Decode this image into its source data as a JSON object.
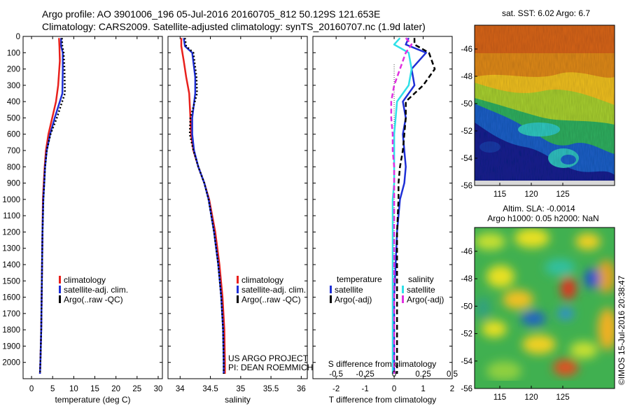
{
  "header": {
    "line1": "Argo profile: AO 3901006_196 05-Jul-2016 20160705_812 50.129S 121.653E",
    "line2": "Climatology: CARS2009. Satellite-adjusted climatology: synTS_20160707.nc (1.9d later)"
  },
  "colors": {
    "climatology": "#e8201c",
    "satellite": "#1e2fd6",
    "argo": "#000000",
    "sat_salinity": "#30e0e8",
    "argo_adj_salinity": "#e030e0"
  },
  "chart_data": [
    {
      "type": "line",
      "xlabel": "temperature (deg C)",
      "ylabel": "",
      "xlim": [
        -2,
        31
      ],
      "ylim": [
        2100,
        0
      ],
      "xticks": [
        "0",
        "5",
        "10",
        "15",
        "20",
        "25",
        "30"
      ],
      "yticks": [
        "0",
        "100",
        "200",
        "300",
        "400",
        "500",
        "600",
        "700",
        "800",
        "900",
        "1000",
        "1100",
        "1200",
        "1300",
        "1400",
        "1500",
        "1600",
        "1700",
        "1800",
        "1900",
        "2000"
      ],
      "legend": [
        "climatology",
        "satellite-adj. clim.",
        "Argo(..raw -QC)"
      ],
      "legend_position": "center-left",
      "series": [
        {
          "name": "climatology",
          "x": [
            6.5,
            6.6,
            6.7,
            6.3,
            5.8,
            4.9,
            4.0,
            3.4,
            3.1,
            2.9,
            2.7,
            2.6,
            2.5,
            2.4,
            2.3,
            2.2,
            2.1,
            2.0
          ],
          "y": [
            10,
            60,
            150,
            300,
            400,
            500,
            600,
            700,
            800,
            900,
            1000,
            1200,
            1400,
            1600,
            1800,
            1900,
            2000,
            2070
          ]
        },
        {
          "name": "satellite-adj. clim.",
          "x": [
            7.0,
            7.0,
            7.4,
            7.4,
            7.3,
            5.5,
            4.4,
            3.6,
            3.2,
            3.0,
            2.8,
            2.6,
            2.5,
            2.4,
            2.3,
            2.2,
            2.1,
            2.0
          ],
          "y": [
            10,
            60,
            100,
            200,
            350,
            500,
            600,
            700,
            800,
            900,
            1000,
            1200,
            1400,
            1600,
            1800,
            1900,
            2000,
            2070
          ]
        },
        {
          "name": "Argo(..raw -QC)",
          "x": [
            7.2,
            7.3,
            7.6,
            7.8,
            7.9,
            6.0,
            4.5,
            3.6,
            3.2,
            3.0,
            2.8,
            2.6,
            2.5,
            2.4,
            2.3,
            2.2,
            2.1,
            2.0
          ],
          "y": [
            10,
            60,
            100,
            200,
            350,
            500,
            600,
            700,
            800,
            900,
            1000,
            1200,
            1400,
            1600,
            1800,
            1900,
            2000,
            2070
          ]
        }
      ]
    },
    {
      "type": "line",
      "xlabel": "salinity",
      "ylabel": "",
      "xlim": [
        33.8,
        36.1
      ],
      "ylim": [
        2100,
        0
      ],
      "xticks": [
        "34",
        "34.5",
        "35",
        "35.5",
        "36"
      ],
      "legend": [
        "climatology",
        "satellite-adj. clim.",
        "Argo(..raw -QC)"
      ],
      "legend_position": "center-right",
      "annotation": [
        "US ARGO PROJECT",
        "PI: DEAN ROEMMICH"
      ],
      "series": [
        {
          "name": "climatology",
          "x": [
            34.02,
            34.02,
            34.06,
            34.1,
            34.15,
            34.17,
            34.18,
            34.22,
            34.3,
            34.4,
            34.48,
            34.58,
            34.65,
            34.7,
            34.73,
            34.74,
            34.74
          ],
          "y": [
            10,
            60,
            150,
            250,
            350,
            500,
            600,
            700,
            800,
            900,
            1000,
            1200,
            1400,
            1600,
            1800,
            2000,
            2070
          ]
        },
        {
          "name": "satellite-adj. clim.",
          "x": [
            34.06,
            34.08,
            34.2,
            34.25,
            34.25,
            34.2,
            34.2,
            34.23,
            34.3,
            34.4,
            34.47,
            34.56,
            34.63,
            34.68,
            34.71,
            34.72,
            34.72
          ],
          "y": [
            10,
            60,
            100,
            250,
            350,
            500,
            600,
            700,
            800,
            900,
            1000,
            1200,
            1400,
            1600,
            1800,
            2000,
            2070
          ]
        },
        {
          "name": "Argo(..raw -QC)",
          "x": [
            34.08,
            34.1,
            34.22,
            34.27,
            34.28,
            34.17,
            34.16,
            34.22,
            34.3,
            34.4,
            34.47,
            34.56,
            34.63,
            34.68,
            34.71,
            34.72,
            34.72
          ],
          "y": [
            10,
            60,
            100,
            250,
            350,
            500,
            600,
            700,
            800,
            900,
            1000,
            1200,
            1400,
            1600,
            1800,
            2000,
            2070
          ]
        }
      ]
    },
    {
      "type": "line",
      "xlabel": "T difference from climatology",
      "xlabel2": "S difference from climatology",
      "xlim": [
        -2.8,
        2.0
      ],
      "ylim": [
        2100,
        0
      ],
      "xticks": [
        "-2",
        "-1",
        "0",
        "1",
        "2"
      ],
      "xticks_s": [
        "-0.5",
        "-0.25",
        "0",
        "0.25",
        "0.5"
      ],
      "legend_titles": [
        "temperature",
        "salinity"
      ],
      "legend": [
        "satellite",
        "Argo(-adj)",
        "satellite",
        "Argo(-adj)"
      ],
      "legend_position": "center",
      "series": [
        {
          "name": "satellite",
          "group": "temperature",
          "x": [
            0.5,
            0.4,
            1.1,
            0.6,
            0.7,
            0.3,
            0.4,
            0.3,
            0.35,
            0.4,
            0.35,
            0.2,
            0.1,
            0.05,
            0.0,
            0.0,
            0.0,
            0.0
          ],
          "y": [
            10,
            50,
            100,
            200,
            300,
            400,
            500,
            600,
            700,
            800,
            900,
            1000,
            1200,
            1400,
            1600,
            1800,
            2000,
            2070
          ]
        },
        {
          "name": "Argo(-adj)",
          "group": "temperature",
          "x": [
            0.7,
            0.7,
            1.2,
            1.4,
            1.0,
            0.4,
            0.4,
            0.35,
            0.3,
            0.2,
            0.15,
            0.15,
            0.1,
            0.1,
            0.1,
            0.1,
            0.1,
            0.1
          ],
          "y": [
            10,
            50,
            100,
            200,
            300,
            400,
            500,
            600,
            700,
            800,
            900,
            1000,
            1200,
            1400,
            1600,
            1800,
            2000,
            2070
          ]
        },
        {
          "name": "satellite",
          "group": "salinity",
          "x": [
            0.2,
            0.0,
            0.5,
            0.6,
            0.5,
            0.1,
            0.05,
            0.0,
            0.0,
            0.0,
            0.0,
            -0.05,
            -0.05,
            -0.05,
            -0.05,
            -0.05,
            -0.05,
            -0.05
          ],
          "y": [
            10,
            50,
            100,
            200,
            300,
            400,
            500,
            600,
            700,
            800,
            900,
            1000,
            1200,
            1400,
            1600,
            1800,
            2000,
            2070
          ]
        },
        {
          "name": "Argo(-adj)",
          "group": "salinity",
          "x": [
            0.4,
            0.6,
            0.4,
            0.2,
            0.0,
            -0.1,
            -0.1,
            -0.05,
            -0.05,
            0.0,
            0.0,
            0.0,
            0.0,
            0.0,
            0.0,
            0.0,
            0.0,
            0.0
          ],
          "y": [
            10,
            50,
            100,
            200,
            300,
            400,
            500,
            600,
            700,
            800,
            900,
            1000,
            1200,
            1400,
            1600,
            1800,
            2000,
            2070
          ]
        }
      ]
    },
    {
      "type": "heatmap",
      "title": "sat. SST: 6.02 Argo: 6.7",
      "xticks": [
        "115",
        "120",
        "125"
      ],
      "yticks": [
        "-46",
        "-48",
        "-50",
        "-52",
        "-54",
        "-56"
      ],
      "colormap": "jet"
    },
    {
      "type": "heatmap",
      "title": "Altim. SLA: -0.0014",
      "subtitle": "Argo h1000: 0.05 h2000: NaN",
      "xticks": [
        "115",
        "120",
        "125"
      ],
      "yticks": [
        "-46",
        "-48",
        "-50",
        "-52",
        "-54",
        "-56"
      ],
      "colormap": "jet",
      "side_label": "©IMOS 15-Jul-2016 20:38:47"
    }
  ]
}
